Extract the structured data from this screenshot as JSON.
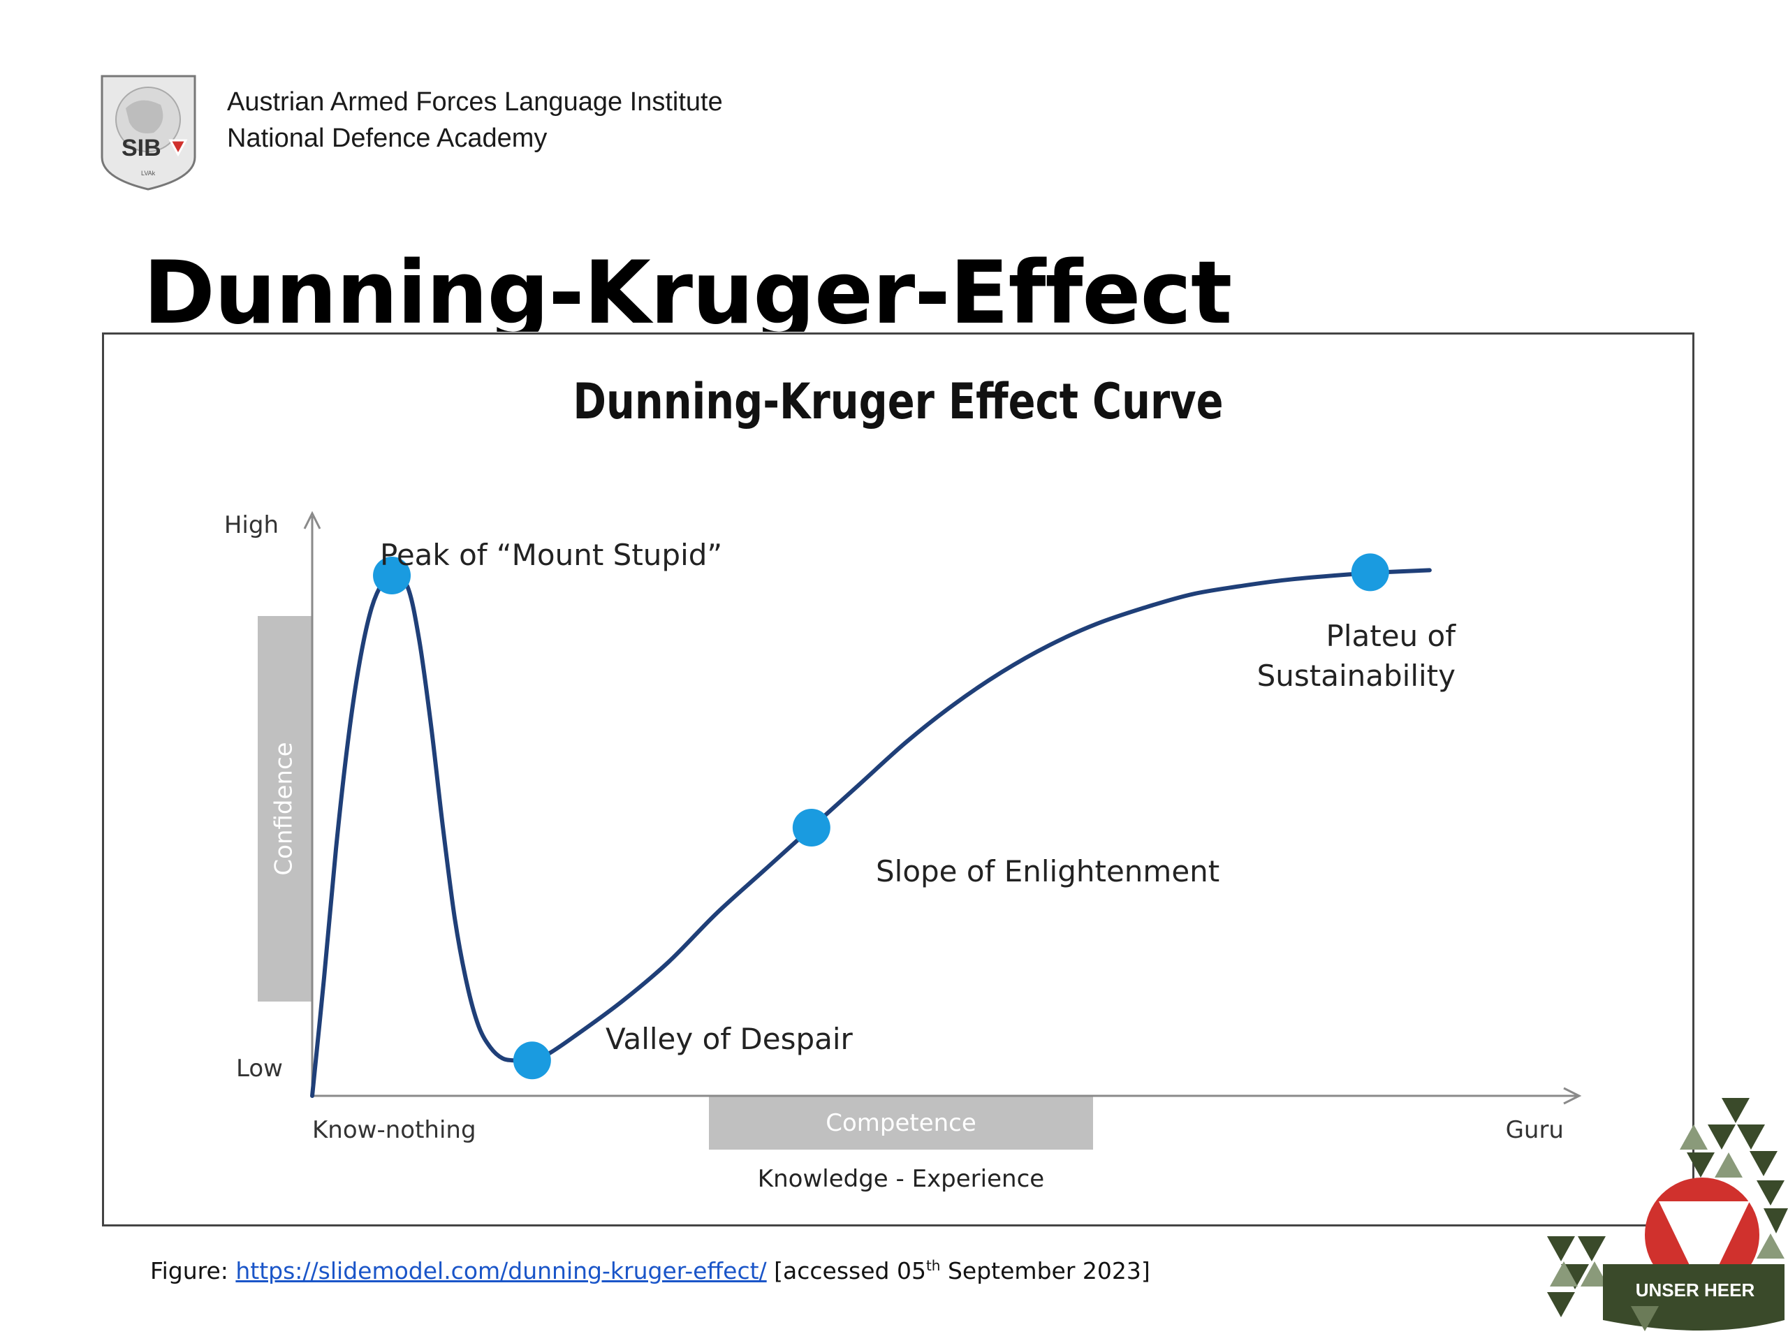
{
  "header": {
    "logo_text": "SIB",
    "institute_line1": "Austrian Armed Forces Language Institute",
    "institute_line2": "National Defence Academy"
  },
  "slide_title": "Dunning-Kruger-Effect",
  "chart_data": {
    "type": "line",
    "title": "Dunning-Kruger Effect Curve",
    "ylabel": "Confidence",
    "y_tick_labels": [
      "High",
      "Low"
    ],
    "xlabel": "Competence",
    "xlabel_sub": "Knowledge - Experience",
    "x_tick_labels": [
      "Know-nothing",
      "Guru"
    ],
    "xlim": [
      0,
      100
    ],
    "ylim": [
      0,
      100
    ],
    "series": [
      {
        "values_x": [
          0,
          1,
          2,
          3,
          4,
          5,
          6,
          6.7,
          8,
          9,
          10,
          11,
          12,
          13,
          14,
          15,
          16,
          17,
          18,
          19,
          20,
          22,
          26,
          30,
          34,
          38,
          42,
          46,
          50,
          54,
          58,
          62,
          66,
          70,
          74,
          78,
          82,
          86,
          90,
          94
        ],
        "values_y": [
          0,
          22,
          46,
          66,
          81,
          91,
          96,
          97,
          95,
          85,
          69,
          50,
          33,
          21,
          13,
          9,
          7,
          6.6,
          6.6,
          7,
          8,
          11,
          17.5,
          25,
          34,
          42,
          50,
          58,
          66,
          73,
          79,
          84,
          88,
          91,
          93.5,
          95,
          96.2,
          97,
          97.6,
          98
        ]
      }
    ],
    "points": [
      {
        "label": "Peak of “Mount Stupid”",
        "x": 6.7,
        "y": 97
      },
      {
        "label": "Valley of Despair",
        "x": 18.5,
        "y": 6.6
      },
      {
        "label": "Slope of Enlightenment",
        "x": 42,
        "y": 50
      },
      {
        "label": "Plateu of",
        "label2": "Sustainability",
        "x": 89,
        "y": 97.6
      }
    ],
    "colors": {
      "line": "#1f3f78",
      "point": "#1a9be0",
      "axis": "#8a8a8a",
      "band": "#c0c0c0"
    },
    "grid": false,
    "legend": "none"
  },
  "caption": {
    "prefix": "Figure: ",
    "link": "https://slidemodel.com/dunning-kruger-effect/",
    "suffix_pre": " [accessed 05",
    "suffix_sup": "th",
    "suffix_post": " September 2023]"
  },
  "army_logo_text": "UNSER HEER",
  "colors": {
    "link": "#1a55c8",
    "army_red": "#d0312d",
    "army_green": "#3a4a2a"
  }
}
